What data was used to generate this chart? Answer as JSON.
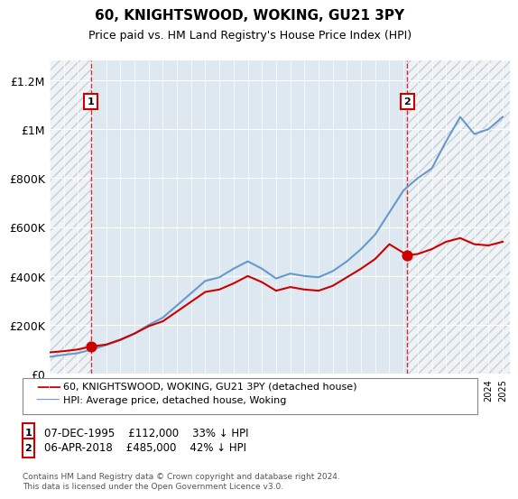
{
  "title": "60, KNIGHTSWOOD, WOKING, GU21 3PY",
  "subtitle": "Price paid vs. HM Land Registry's House Price Index (HPI)",
  "legend_line1": "60, KNIGHTSWOOD, WOKING, GU21 3PY (detached house)",
  "legend_line2": "HPI: Average price, detached house, Woking",
  "transaction1_date": 1995.92,
  "transaction1_price": 112000,
  "transaction1_label": "1",
  "transaction1_note": "07-DEC-1995    £112,000    33% ↓ HPI",
  "transaction2_date": 2018.27,
  "transaction2_price": 485000,
  "transaction2_label": "2",
  "transaction2_note": "06-APR-2018    £485,000    42% ↓ HPI",
  "hpi_color": "#6699cc",
  "price_color": "#cc0000",
  "hatch_color": "#cccccc",
  "background_color": "#dde8f0",
  "plot_bg": "#dde8f0",
  "ylim_min": 0,
  "ylim_max": 1280000,
  "xmin": 1993.0,
  "xmax": 2025.5,
  "footer": "Contains HM Land Registry data © Crown copyright and database right 2024.\nThis data is licensed under the Open Government Licence v3.0."
}
